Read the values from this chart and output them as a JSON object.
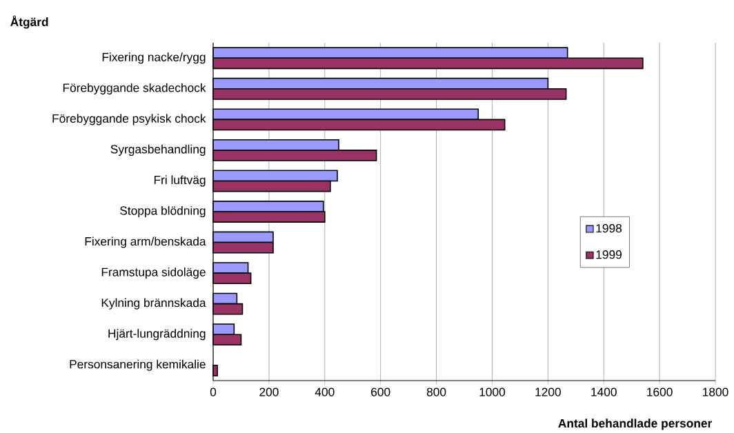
{
  "chart_data": {
    "type": "bar",
    "orientation": "horizontal",
    "title": "Åtgärd",
    "xlabel": "Antal behandlade personer",
    "categories": [
      "Fixering nacke/rygg",
      "Förebyggande skadechock",
      "Förebyggande psykisk chock",
      "Syrgasbehandling",
      "Fri luftväg",
      "Stoppa blödning",
      "Fixering arm/benskada",
      "Framstupa sidoläge",
      "Kylning brännskada",
      "Hjärt-lungräddning",
      "Personsanering kemikalie"
    ],
    "series": [
      {
        "name": "1998",
        "color": "#9999ff",
        "values": [
          1270,
          1200,
          950,
          450,
          445,
          395,
          215,
          125,
          85,
          75,
          null
        ]
      },
      {
        "name": "1999",
        "color": "#993366",
        "values": [
          1540,
          1265,
          1045,
          585,
          420,
          400,
          215,
          135,
          105,
          100,
          15
        ]
      }
    ],
    "xlim": [
      0,
      1800
    ],
    "xticks": [
      0,
      200,
      400,
      600,
      800,
      1000,
      1200,
      1400,
      1600,
      1800
    ],
    "grid": "x",
    "legend": "right"
  }
}
